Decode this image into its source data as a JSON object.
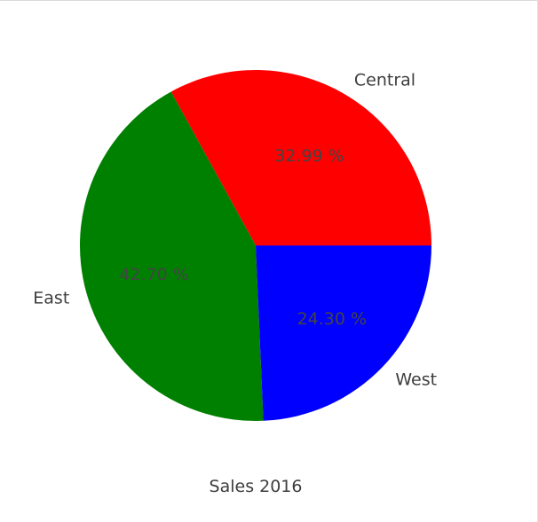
{
  "chart_data": {
    "type": "pie",
    "title": "Sales 2016",
    "labels": [
      "Central",
      "East",
      "West"
    ],
    "values": [
      32.99,
      42.7,
      24.3
    ],
    "value_labels": [
      "32.99 %",
      "42.70 %",
      "24.30 %"
    ],
    "colors": [
      "#ff0000",
      "#008000",
      "#0000ff"
    ],
    "start_angle_deg": 0,
    "direction": "counterclockwise"
  }
}
